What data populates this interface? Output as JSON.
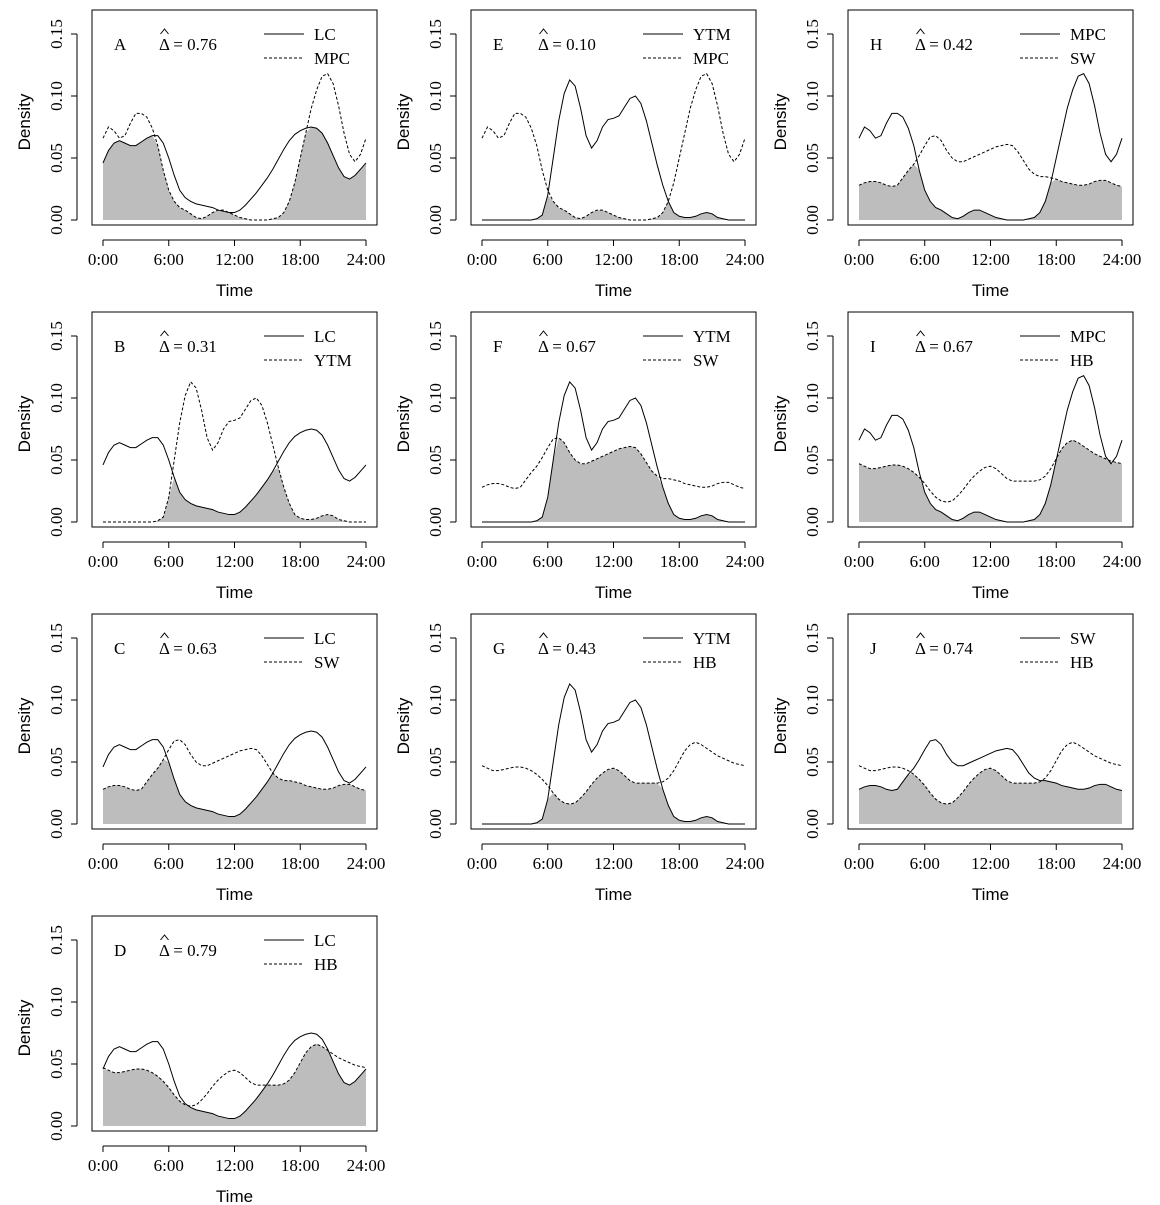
{
  "styles": {
    "overlap_fill": "#bdbdbd",
    "line_color": "#000000",
    "panel_border": "#000000"
  },
  "axes": {
    "xlabel": "Time",
    "ylabel": "Density",
    "xticks": [
      "0:00",
      "6:00",
      "12:00",
      "18:00",
      "24:00"
    ],
    "xtick_values": [
      0,
      6,
      12,
      18,
      24
    ],
    "yticks": [
      "0.00",
      "0.05",
      "0.10",
      "0.15"
    ],
    "ytick_values": [
      0,
      0.05,
      0.1,
      0.15
    ],
    "xlim": [
      0,
      24
    ],
    "ylim": [
      0,
      0.15
    ]
  },
  "species_curves": {
    "x": [
      0,
      0.5,
      1,
      1.5,
      2,
      2.5,
      3,
      3.5,
      4,
      4.5,
      5,
      5.5,
      6,
      6.5,
      7,
      7.5,
      8,
      8.5,
      9,
      9.5,
      10,
      10.5,
      11,
      11.5,
      12,
      12.5,
      13,
      13.5,
      14,
      14.5,
      15,
      15.5,
      16,
      16.5,
      17,
      17.5,
      18,
      18.5,
      19,
      19.5,
      20,
      20.5,
      21,
      21.5,
      22,
      22.5,
      23,
      23.5,
      24
    ],
    "LC": [
      0.046,
      0.056,
      0.062,
      0.064,
      0.062,
      0.06,
      0.06,
      0.063,
      0.066,
      0.068,
      0.068,
      0.062,
      0.05,
      0.036,
      0.024,
      0.018,
      0.015,
      0.013,
      0.012,
      0.011,
      0.01,
      0.008,
      0.007,
      0.006,
      0.006,
      0.008,
      0.012,
      0.017,
      0.022,
      0.028,
      0.034,
      0.041,
      0.049,
      0.057,
      0.064,
      0.069,
      0.072,
      0.074,
      0.075,
      0.074,
      0.07,
      0.062,
      0.052,
      0.042,
      0.035,
      0.033,
      0.036,
      0.041,
      0.046
    ],
    "MPC": [
      0.066,
      0.075,
      0.072,
      0.066,
      0.068,
      0.078,
      0.086,
      0.086,
      0.083,
      0.074,
      0.06,
      0.04,
      0.024,
      0.015,
      0.01,
      0.008,
      0.005,
      0.002,
      0.001,
      0.003,
      0.006,
      0.008,
      0.008,
      0.006,
      0.004,
      0.002,
      0.001,
      0,
      0,
      0,
      0,
      0.001,
      0.002,
      0.006,
      0.015,
      0.03,
      0.05,
      0.07,
      0.09,
      0.105,
      0.116,
      0.118,
      0.11,
      0.092,
      0.07,
      0.053,
      0.047,
      0.053,
      0.066
    ],
    "YTM": [
      0,
      0,
      0,
      0,
      0,
      0,
      0,
      0,
      0,
      0,
      0.001,
      0.004,
      0.02,
      0.05,
      0.08,
      0.102,
      0.113,
      0.108,
      0.09,
      0.068,
      0.058,
      0.064,
      0.075,
      0.081,
      0.082,
      0.084,
      0.091,
      0.098,
      0.1,
      0.094,
      0.08,
      0.062,
      0.044,
      0.028,
      0.015,
      0.006,
      0.003,
      0.002,
      0.002,
      0.003,
      0.005,
      0.006,
      0.005,
      0.002,
      0.001,
      0,
      0,
      0,
      0
    ],
    "SW": [
      0.028,
      0.03,
      0.031,
      0.031,
      0.03,
      0.028,
      0.027,
      0.028,
      0.034,
      0.04,
      0.045,
      0.052,
      0.06,
      0.067,
      0.068,
      0.064,
      0.056,
      0.05,
      0.047,
      0.047,
      0.049,
      0.051,
      0.053,
      0.055,
      0.057,
      0.059,
      0.06,
      0.061,
      0.06,
      0.055,
      0.048,
      0.041,
      0.037,
      0.035,
      0.035,
      0.034,
      0.033,
      0.031,
      0.03,
      0.029,
      0.028,
      0.028,
      0.029,
      0.031,
      0.032,
      0.032,
      0.03,
      0.028,
      0.027
    ],
    "HB": [
      0.047,
      0.045,
      0.043,
      0.043,
      0.044,
      0.045,
      0.046,
      0.046,
      0.045,
      0.043,
      0.04,
      0.036,
      0.031,
      0.025,
      0.02,
      0.017,
      0.016,
      0.017,
      0.021,
      0.026,
      0.032,
      0.037,
      0.041,
      0.044,
      0.045,
      0.043,
      0.039,
      0.035,
      0.033,
      0.033,
      0.033,
      0.033,
      0.033,
      0.034,
      0.037,
      0.043,
      0.051,
      0.059,
      0.064,
      0.066,
      0.064,
      0.061,
      0.058,
      0.055,
      0.053,
      0.051,
      0.049,
      0.048,
      0.047
    ]
  },
  "chart_data": [
    {
      "type": "line",
      "letter": "A",
      "overlap_label": "Δ = 0.76",
      "solid": "LC",
      "dashed": "MPC"
    },
    {
      "type": "line",
      "letter": "B",
      "overlap_label": "Δ = 0.31",
      "solid": "LC",
      "dashed": "YTM"
    },
    {
      "type": "line",
      "letter": "C",
      "overlap_label": "Δ = 0.63",
      "solid": "LC",
      "dashed": "SW"
    },
    {
      "type": "line",
      "letter": "D",
      "overlap_label": "Δ = 0.79",
      "solid": "LC",
      "dashed": "HB"
    },
    {
      "type": "line",
      "letter": "E",
      "overlap_label": "Δ = 0.10",
      "solid": "YTM",
      "dashed": "MPC"
    },
    {
      "type": "line",
      "letter": "F",
      "overlap_label": "Δ = 0.67",
      "solid": "YTM",
      "dashed": "SW"
    },
    {
      "type": "line",
      "letter": "G",
      "overlap_label": "Δ = 0.43",
      "solid": "YTM",
      "dashed": "HB"
    },
    {
      "type": "line",
      "letter": "H",
      "overlap_label": "Δ = 0.42",
      "solid": "MPC",
      "dashed": "SW"
    },
    {
      "type": "line",
      "letter": "I",
      "overlap_label": "Δ = 0.67",
      "solid": "MPC",
      "dashed": "HB"
    },
    {
      "type": "line",
      "letter": "J",
      "overlap_label": "Δ = 0.74",
      "solid": "SW",
      "dashed": "HB"
    }
  ]
}
